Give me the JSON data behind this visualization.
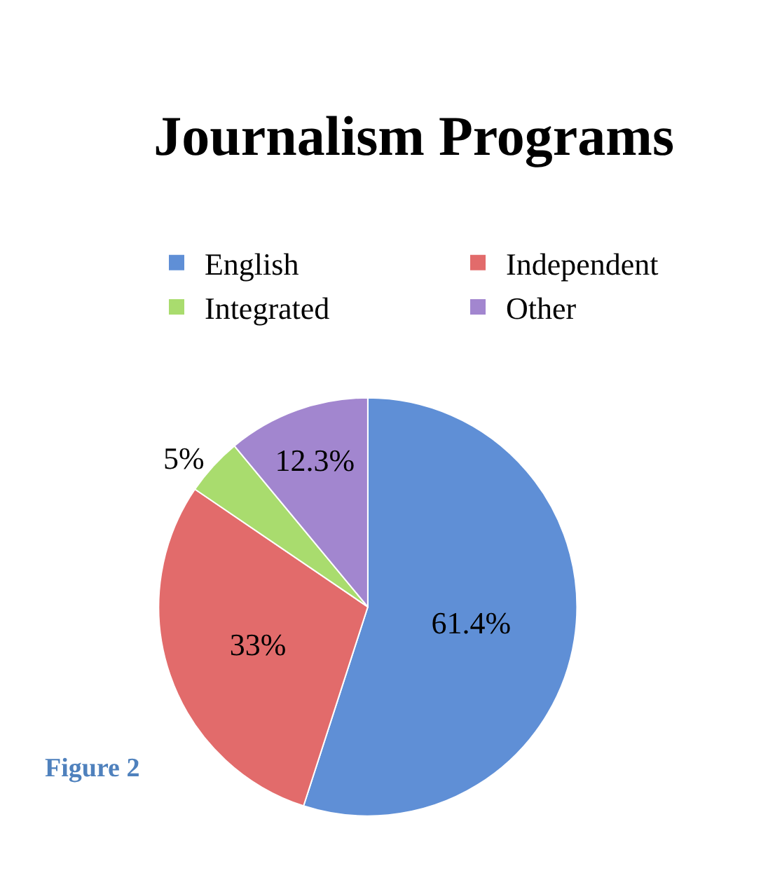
{
  "chart_data": {
    "type": "pie",
    "title": "Journalism Programs",
    "categories": [
      "English",
      "Independent",
      "Integrated",
      "Other"
    ],
    "values": [
      61.4,
      33,
      5,
      12.3
    ],
    "colors": [
      "#5f8fd6",
      "#e26b6b",
      "#a9dc6e",
      "#a286cf"
    ],
    "value_labels": [
      "61.4%",
      "33%",
      "5%",
      "12.3%"
    ],
    "legend": "top",
    "annotations": [
      "Figure 2"
    ]
  }
}
